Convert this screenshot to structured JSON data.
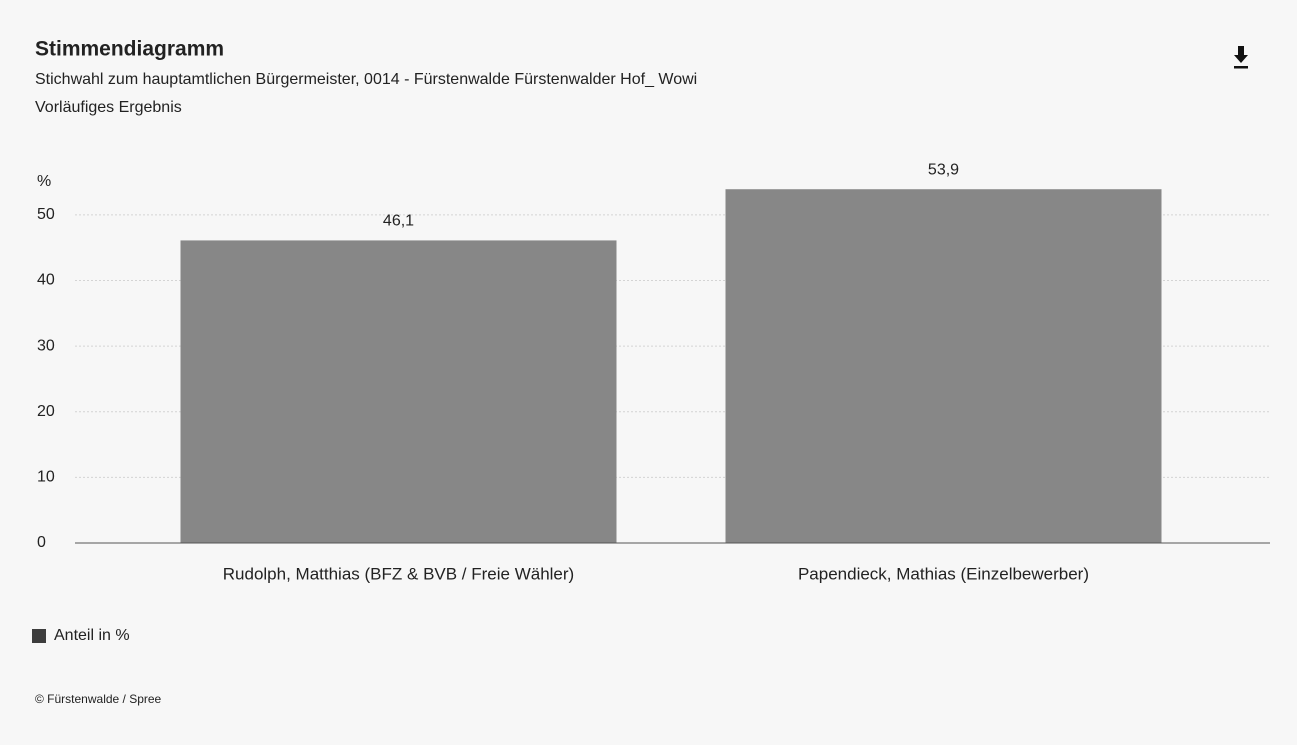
{
  "chart_data": {
    "type": "bar",
    "title": "Stimmendiagramm",
    "subtitle": "Stichwahl zum hauptamtlichen Bürgermeister, 0014 - Fürstenwalde Fürstenwalder Hof_ Wowi",
    "note": "Vorläufiges Ergebnis",
    "y_label": "%",
    "categories": [
      "Rudolph, Matthias (BFZ & BVB / Freie Wähler)",
      "Papendieck, Mathias (Einzelbewerber)"
    ],
    "series": [
      {
        "name": "Anteil in %",
        "color": "#878787",
        "legend_color": "#3d3d3d",
        "values": [
          46.1,
          53.9
        ],
        "value_labels": [
          "46,1",
          "53,9"
        ]
      }
    ],
    "ylim": [
      0,
      55
    ],
    "yticks": [
      0,
      10,
      20,
      30,
      40,
      50
    ],
    "grid": true,
    "credit": "© Fürstenwalde / Spree"
  }
}
